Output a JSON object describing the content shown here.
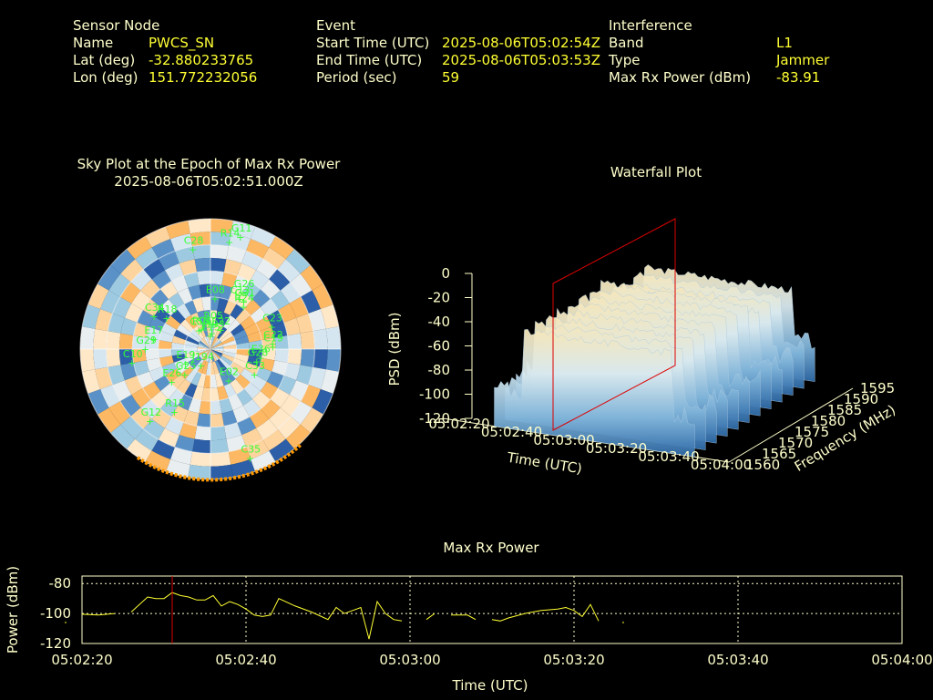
{
  "header": {
    "sensor": {
      "heading": "Sensor Node",
      "name_label": "Name",
      "name_value": "PWCS_SN",
      "lat_label": "Lat (deg)",
      "lat_value": "-32.880233765",
      "lon_label": "Lon (deg)",
      "lon_value": "151.772232056"
    },
    "event": {
      "heading": "Event",
      "start_label": "Start Time (UTC)",
      "start_value": "2025-08-06T05:02:54Z",
      "end_label": "End Time (UTC)",
      "end_value": "2025-08-06T05:03:53Z",
      "period_label": "Period (sec)",
      "period_value": "59"
    },
    "interference": {
      "heading": "Interference",
      "band_label": "Band",
      "band_value": "L1",
      "type_label": "Type",
      "type_value": "Jammer",
      "power_label": "Max Rx Power (dBm)",
      "power_value": "-83.91"
    }
  },
  "colors": {
    "background": "#000000",
    "label": "#ffffcc",
    "value": "#ffff33",
    "satellite": "#33ff33",
    "marker": "#dd0000",
    "trace": "#ffff33",
    "warm": "#fdb863",
    "cool": "#2c5fa8",
    "horizon": "#ff9900"
  },
  "chart_data": [
    {
      "type": "scatter",
      "title": "Sky Plot at the Epoch of Max Rx Power",
      "subtitle": "2025-08-06T05:02:51.000Z",
      "background": "polar heatmap of azimuth/elevation bins (orange/blue)",
      "satellites": [
        {
          "id": "E15",
          "az": 0,
          "el": 86
        },
        {
          "id": "J193",
          "az": 5,
          "el": 84
        },
        {
          "id": "R05",
          "az": 5,
          "el": 78
        },
        {
          "id": "E22",
          "az": 28,
          "el": 80
        },
        {
          "id": "C56",
          "az": -32,
          "el": 80
        },
        {
          "id": "R06",
          "az": -25,
          "el": 80
        },
        {
          "id": "E08",
          "az": 5,
          "el": 60
        },
        {
          "id": "C13",
          "az": 30,
          "el": 55
        },
        {
          "id": "R24",
          "az": 38,
          "el": 58
        },
        {
          "id": "G26",
          "az": 30,
          "el": 50
        },
        {
          "id": "G31",
          "az": 35,
          "el": 55
        },
        {
          "id": "R18",
          "az": -55,
          "el": 58
        },
        {
          "id": "C34",
          "az": -60,
          "el": 50
        },
        {
          "id": "C23",
          "az": 70,
          "el": 50
        },
        {
          "id": "C22",
          "az": 85,
          "el": 52
        },
        {
          "id": "C19",
          "az": 88,
          "el": 52
        },
        {
          "id": "E36",
          "az": 100,
          "el": 60
        },
        {
          "id": "G28",
          "az": 105,
          "el": 62
        },
        {
          "id": "E17",
          "az": -80,
          "el": 55
        },
        {
          "id": "G29",
          "az": -90,
          "el": 50
        },
        {
          "id": "C10",
          "az": -100,
          "el": 40
        },
        {
          "id": "C28",
          "az": -10,
          "el": 25
        },
        {
          "id": "R14",
          "az": 10,
          "el": 20
        },
        {
          "id": "G11",
          "az": 15,
          "el": 15
        },
        {
          "id": "C35",
          "az": 160,
          "el": 15
        },
        {
          "id": "G12",
          "az": -140,
          "el": 30
        },
        {
          "id": "R15",
          "az": -150,
          "el": 45
        },
        {
          "id": "E26",
          "az": -130,
          "el": 60
        },
        {
          "id": "G25",
          "az": -135,
          "el": 70
        },
        {
          "id": "E19",
          "az": -120,
          "el": 75
        },
        {
          "id": "E02",
          "az": 150,
          "el": 70
        },
        {
          "id": "C33",
          "az": 120,
          "el": 60
        },
        {
          "id": "J194",
          "az": -150,
          "el": 82
        }
      ]
    },
    {
      "type": "area",
      "title": "Waterfall Plot",
      "zlabel": "PSD (dBm)",
      "xlabel": "Time (UTC)",
      "ylabel": "Frequency (MHz)",
      "z_ticks": [
        "0",
        "-20",
        "-40",
        "-60",
        "-80",
        "-100",
        "-120"
      ],
      "x_ticks": [
        "05:02:20",
        "05:02:40",
        "05:03:00",
        "05:03:20",
        "05:03:40",
        "05:04:00"
      ],
      "y_ticks": [
        "1560",
        "1565",
        "1570",
        "1575",
        "1580",
        "1585",
        "1590",
        "1595"
      ],
      "zlim": [
        -120,
        0
      ],
      "marker_time": "05:02:51"
    },
    {
      "type": "line",
      "title": "Max Rx Power",
      "xlabel": "Time (UTC)",
      "ylabel": "Power (dBm)",
      "ylim": [
        -120,
        -75
      ],
      "y_ticks": [
        -80,
        -100,
        -120
      ],
      "x_ticks": [
        "05:02:20",
        "05:02:40",
        "05:03:00",
        "05:03:20",
        "05:03:40",
        "05:04:00"
      ],
      "marker_time_s": 31,
      "segments": [
        [
          [
            20,
            -100.5
          ],
          [
            22,
            -101
          ],
          [
            24,
            -100
          ]
        ],
        [
          [
            26,
            -99
          ],
          [
            28,
            -89
          ],
          [
            29,
            -90
          ],
          [
            30,
            -90
          ],
          [
            31,
            -86
          ],
          [
            32,
            -88
          ],
          [
            33,
            -89
          ],
          [
            34,
            -91
          ],
          [
            35,
            -91
          ],
          [
            36,
            -88
          ],
          [
            37,
            -95
          ],
          [
            38,
            -92
          ],
          [
            39,
            -94
          ],
          [
            40,
            -97
          ],
          [
            41,
            -101
          ],
          [
            42,
            -102
          ],
          [
            43,
            -101
          ],
          [
            44,
            -90
          ],
          [
            46,
            -95
          ],
          [
            48,
            -99
          ],
          [
            50,
            -104
          ],
          [
            51,
            -96
          ],
          [
            52,
            -100
          ],
          [
            53,
            -98
          ],
          [
            54,
            -96
          ],
          [
            55,
            -117
          ],
          [
            56,
            -92
          ],
          [
            57,
            -100
          ],
          [
            58,
            -104
          ],
          [
            59,
            -105
          ]
        ],
        [
          [
            62,
            -104
          ],
          [
            63,
            -100
          ]
        ],
        [
          [
            65,
            -101
          ],
          [
            67,
            -101
          ],
          [
            68,
            -104
          ]
        ],
        [
          [
            70,
            -104
          ],
          [
            71,
            -105
          ],
          [
            72,
            -103
          ],
          [
            74,
            -100
          ],
          [
            76,
            -98
          ],
          [
            78,
            -97
          ],
          [
            79,
            -96
          ],
          [
            80,
            -98
          ],
          [
            81,
            -102
          ],
          [
            82,
            -94
          ],
          [
            83,
            -105
          ]
        ]
      ],
      "isolated_points": [
        [
          18,
          -106
        ],
        [
          86,
          -106
        ]
      ]
    }
  ]
}
